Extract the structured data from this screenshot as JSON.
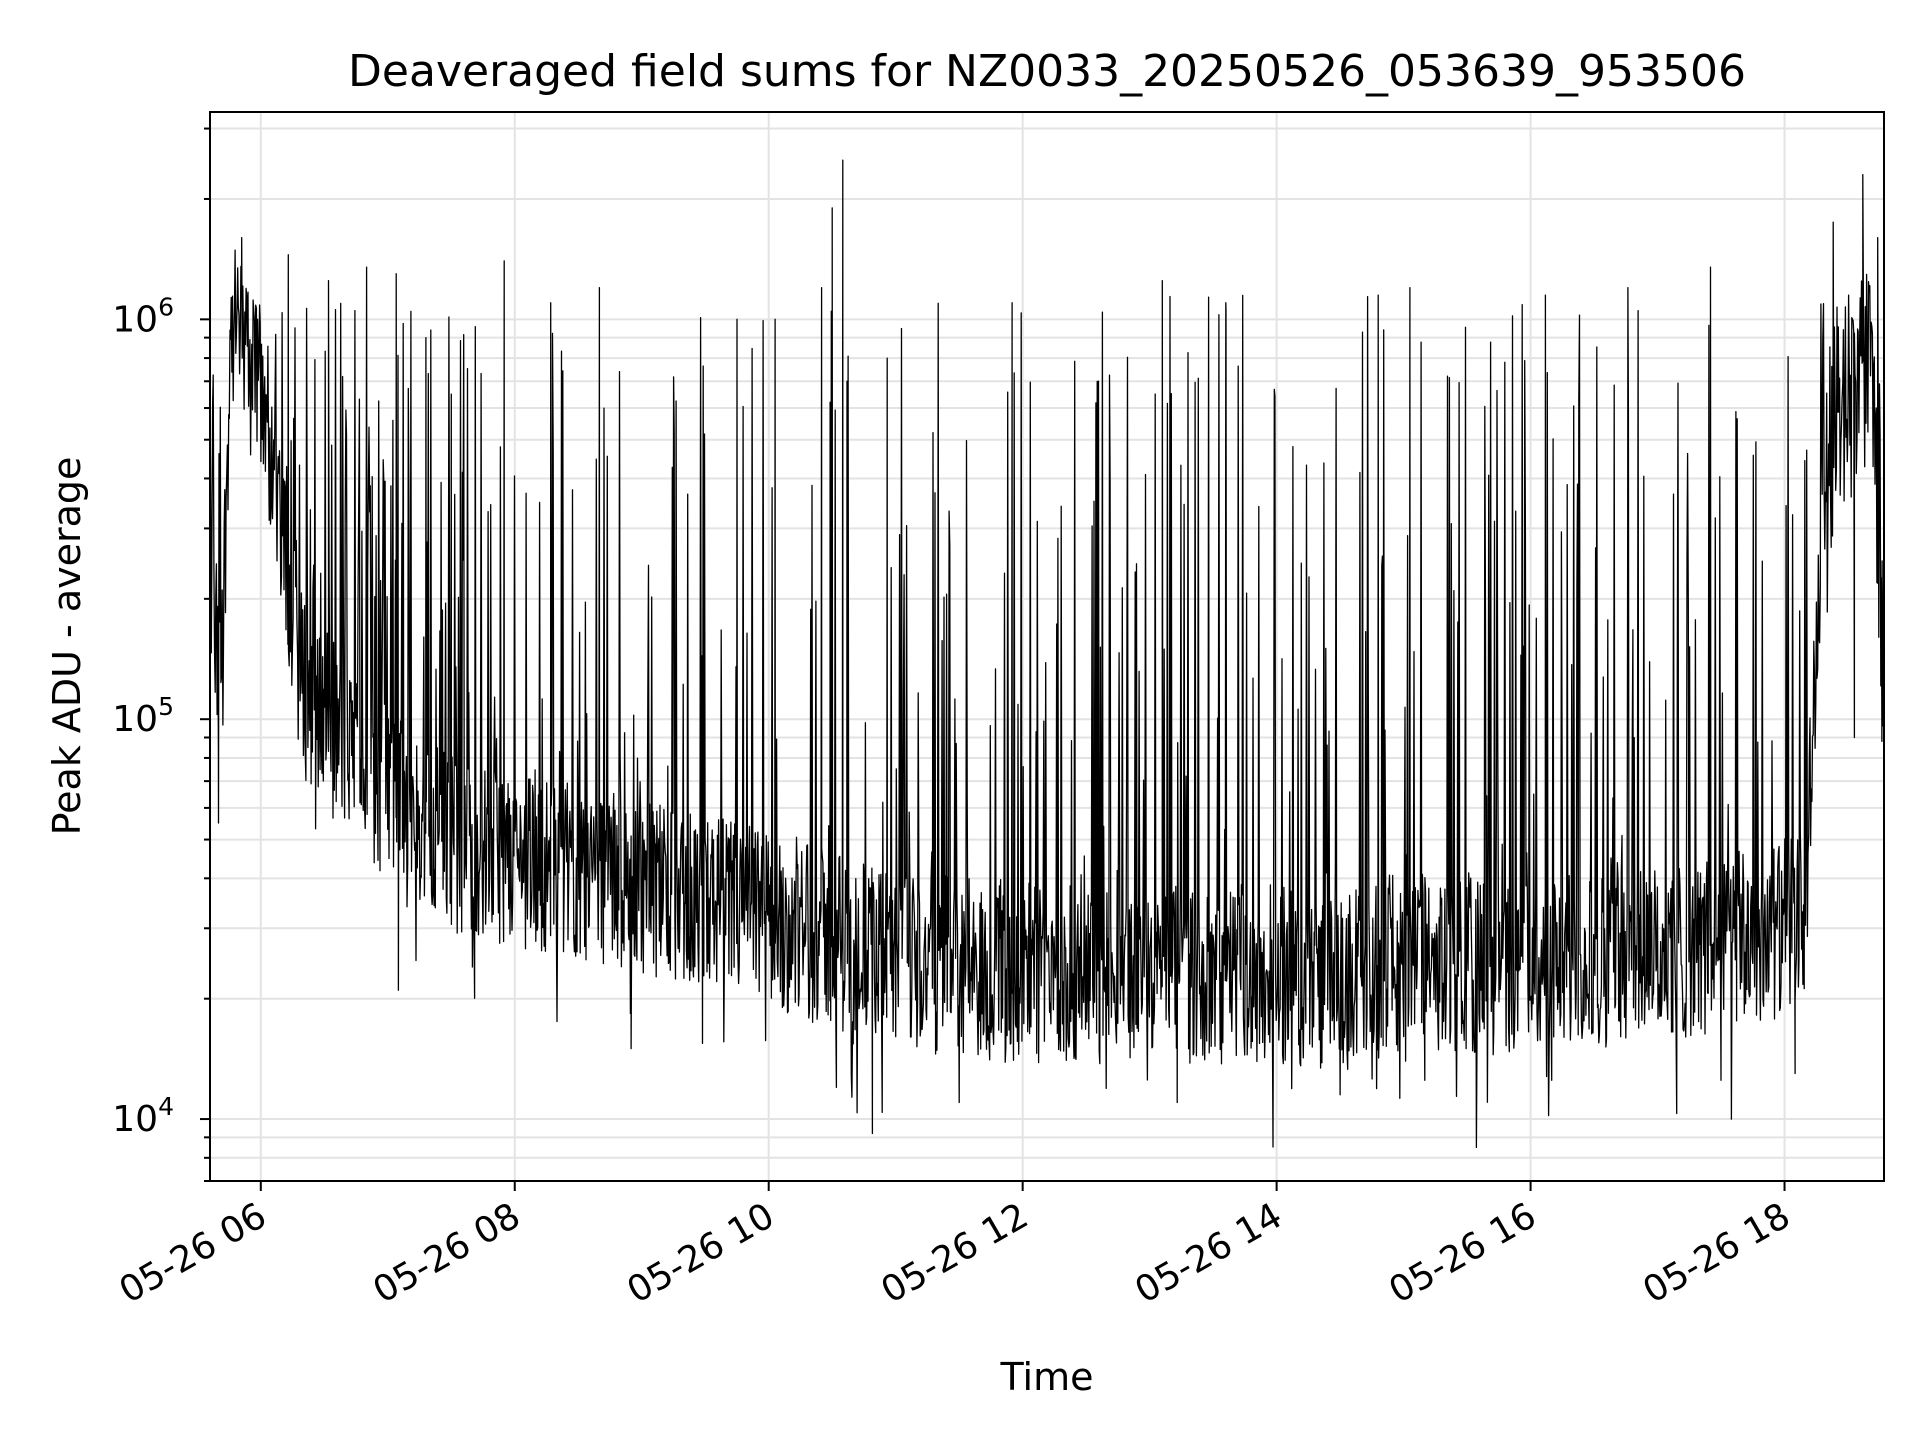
{
  "chart_data": {
    "type": "line",
    "title": "Deaveraged field sums for NZ0033_20250526_053639_953506",
    "xlabel": "Time",
    "ylabel": "Peak ADU - average",
    "y_scale": "log",
    "ylim": [
      7000,
      3300000
    ],
    "xlim": [
      "2025-05-26 05:36",
      "2025-05-26 18:47"
    ],
    "x_ticks": [
      "2025-05-26 06:00",
      "2025-05-26 08:00",
      "2025-05-26 10:00",
      "2025-05-26 12:00",
      "2025-05-26 14:00",
      "2025-05-26 16:00",
      "2025-05-26 18:00"
    ],
    "x_tick_labels": [
      "05-26 06",
      "05-26 08",
      "05-26 10",
      "05-26 12",
      "05-26 14",
      "05-26 16",
      "05-26 18"
    ],
    "y_ticks": [
      10000,
      100000,
      1000000
    ],
    "y_tick_labels": [
      {
        "base": "10",
        "exp": "4"
      },
      {
        "base": "10",
        "exp": "5"
      },
      {
        "base": "10",
        "exp": "6"
      }
    ],
    "grid": true,
    "line_color": "#000000",
    "series": [
      {
        "x": [
          "2025-05-26 05:36",
          "2025-05-26 05:40",
          "2025-05-26 05:42",
          "2025-05-26 05:45",
          "2025-05-26 05:48",
          "2025-05-26 05:52",
          "2025-05-26 05:56",
          "2025-05-26 06:00",
          "2025-05-26 06:05",
          "2025-05-26 06:10",
          "2025-05-26 06:15",
          "2025-05-26 06:20",
          "2025-05-26 06:30",
          "2025-05-26 06:45",
          "2025-05-26 07:00",
          "2025-05-26 07:15",
          "2025-05-26 07:30",
          "2025-05-26 08:00",
          "2025-05-26 08:30",
          "2025-05-26 09:00",
          "2025-05-26 09:30",
          "2025-05-26 10:00",
          "2025-05-26 10:30",
          "2025-05-26 11:00",
          "2025-05-26 11:30",
          "2025-05-26 12:00",
          "2025-05-26 13:00",
          "2025-05-26 14:00",
          "2025-05-26 14:30",
          "2025-05-26 15:00",
          "2025-05-26 15:30",
          "2025-05-26 16:00",
          "2025-05-26 17:00",
          "2025-05-26 17:30",
          "2025-05-26 18:00",
          "2025-05-26 18:10",
          "2025-05-26 18:15",
          "2025-05-26 18:20",
          "2025-05-26 18:30",
          "2025-05-26 18:40",
          "2025-05-26 18:44",
          "2025-05-26 18:47"
        ],
        "y": [
          230000,
          110000,
          160000,
          700000,
          900000,
          800000,
          700000,
          550000,
          450000,
          320000,
          180000,
          120000,
          100000,
          80000,
          65000,
          55000,
          50000,
          45000,
          42000,
          38000,
          35000,
          32000,
          28000,
          25000,
          24000,
          23000,
          23000,
          23000,
          22000,
          25000,
          24000,
          24000,
          26000,
          27000,
          30000,
          34000,
          150000,
          300000,
          550000,
          900000,
          300000,
          120000
        ],
        "spike_tops": [
          [
            "2025-05-26 05:51",
            1600000
          ],
          [
            "2025-05-26 06:13",
            1450000
          ],
          [
            "2025-05-26 06:32",
            1250000
          ],
          [
            "2025-05-26 06:50",
            1350000
          ],
          [
            "2025-05-26 07:04",
            1300000
          ],
          [
            "2025-05-26 07:18",
            900000
          ],
          [
            "2025-05-26 07:30",
            650000
          ],
          [
            "2025-05-26 07:55",
            1400000
          ],
          [
            "2025-05-26 08:17",
            1100000
          ],
          [
            "2025-05-26 08:40",
            1200000
          ],
          [
            "2025-05-26 09:45",
            1000000
          ],
          [
            "2025-05-26 10:03",
            1000000
          ],
          [
            "2025-05-26 10:25",
            1200000
          ],
          [
            "2025-05-26 10:29",
            620000
          ],
          [
            "2025-05-26 10:30",
            750000
          ],
          [
            "2025-05-26 10:30",
            1900000
          ],
          [
            "2025-05-26 10:35",
            2500000
          ],
          [
            "2025-05-26 10:37",
            700000
          ],
          [
            "2025-05-26 10:56",
            800000
          ],
          [
            "2025-05-26 11:55",
            1100000
          ],
          [
            "2025-05-26 13:06",
            1250000
          ],
          [
            "2025-05-26 13:36",
            1100000
          ],
          [
            "2025-05-26 14:48",
            1150000
          ],
          [
            "2025-05-26 15:03",
            1200000
          ],
          [
            "2025-05-26 16:07",
            1150000
          ],
          [
            "2025-05-26 16:46",
            1200000
          ],
          [
            "2025-05-26 17:25",
            1350000
          ],
          [
            "2025-05-26 18:23",
            1750000
          ],
          [
            "2025-05-26 18:37",
            2300000
          ],
          [
            "2025-05-26 18:44",
            1600000
          ]
        ],
        "dip_bottoms": [
          [
            "2025-05-26 05:40",
            55000
          ],
          [
            "2025-05-26 07:05",
            21000
          ],
          [
            "2025-05-26 07:40",
            24000
          ],
          [
            "2025-05-26 08:55",
            15000
          ],
          [
            "2025-05-26 10:32",
            12000
          ],
          [
            "2025-05-26 10:49",
            9200
          ],
          [
            "2025-05-26 11:30",
            11000
          ],
          [
            "2025-05-26 13:13",
            11000
          ],
          [
            "2025-05-26 14:30",
            11500
          ],
          [
            "2025-05-26 15:10",
            12500
          ],
          [
            "2025-05-26 16:10",
            12500
          ],
          [
            "2025-05-26 17:30",
            12500
          ],
          [
            "2025-05-26 18:05",
            13000
          ],
          [
            "2025-05-26 18:33",
            90000
          ],
          [
            "2025-05-26 18:46",
            88000
          ]
        ]
      }
    ]
  }
}
